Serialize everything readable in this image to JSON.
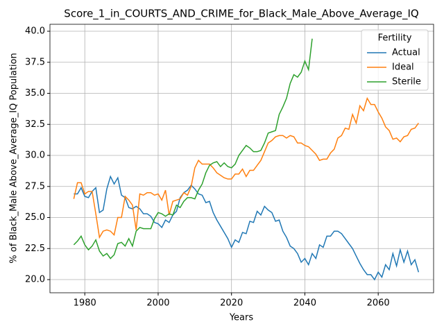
{
  "chart_data": {
    "type": "line",
    "title": "Score_1_in_COURTS_AND_CRIME_for_Black_Male_Above_Average_IQ",
    "xlabel": "Years",
    "ylabel": "% of Black_Male Above_Average_IQ Population",
    "x": [
      1977,
      1978,
      1979,
      1980,
      1981,
      1982,
      1983,
      1984,
      1985,
      1986,
      1987,
      1988,
      1989,
      1990,
      1991,
      1992,
      1993,
      1994,
      1995,
      1996,
      1997,
      1998,
      1999,
      2000,
      2001,
      2002,
      2003,
      2004,
      2005,
      2006,
      2007,
      2008,
      2009,
      2010,
      2011,
      2012,
      2013,
      2014,
      2015,
      2016,
      2017,
      2018,
      2019,
      2020,
      2021,
      2022,
      2023,
      2024,
      2025,
      2026,
      2027,
      2028,
      2029,
      2030,
      2031,
      2032,
      2033,
      2034,
      2035,
      2036,
      2037,
      2038,
      2039,
      2040,
      2041,
      2042,
      2043,
      2044,
      2045,
      2046,
      2047,
      2048,
      2049,
      2050,
      2051,
      2052,
      2053,
      2054,
      2055,
      2056,
      2057,
      2058,
      2059,
      2060,
      2061,
      2062,
      2063,
      2064,
      2065,
      2066,
      2067,
      2068,
      2069,
      2070,
      2071
    ],
    "series": [
      {
        "name": "Actual",
        "color": "#1f77b4",
        "values": [
          26.9,
          26.9,
          27.4,
          26.7,
          26.6,
          27.1,
          27.4,
          25.4,
          25.6,
          27.3,
          28.3,
          27.7,
          28.2,
          26.8,
          26.6,
          25.8,
          25.7,
          25.9,
          25.7,
          25.3,
          25.3,
          25.1,
          24.6,
          24.5,
          24.2,
          24.8,
          24.6,
          25.2,
          25.5,
          26.6,
          27.0,
          27.2,
          27.6,
          27.3,
          26.9,
          26.8,
          26.2,
          26.3,
          25.4,
          24.8,
          24.3,
          23.8,
          23.3,
          22.6,
          23.2,
          23.0,
          23.8,
          23.7,
          24.7,
          24.6,
          25.5,
          25.2,
          25.9,
          25.6,
          25.4,
          24.7,
          24.8,
          23.9,
          23.4,
          22.7,
          22.5,
          22.1,
          21.4,
          21.7,
          21.2,
          22.1,
          21.7,
          22.8,
          22.6,
          23.5,
          23.5,
          23.9,
          23.9,
          23.7,
          23.3,
          22.9,
          22.5,
          21.9,
          21.3,
          20.8,
          20.4,
          20.4,
          20.0,
          20.6,
          20.2,
          21.2,
          20.8,
          22.1,
          21.1,
          22.4,
          21.4,
          22.3,
          21.2,
          21.6,
          20.6
        ]
      },
      {
        "name": "Ideal",
        "color": "#ff7f0e",
        "values": [
          26.5,
          27.8,
          27.8,
          26.9,
          27.1,
          27.1,
          25.3,
          23.4,
          23.9,
          24.0,
          23.9,
          23.6,
          25.0,
          25.0,
          26.7,
          26.4,
          26.0,
          24.0,
          26.9,
          26.8,
          27.0,
          27.0,
          26.8,
          26.9,
          26.4,
          27.2,
          25.2,
          26.3,
          26.4,
          26.5,
          27.0,
          26.8,
          27.5,
          29.0,
          29.6,
          29.3,
          29.3,
          29.3,
          29.0,
          28.6,
          28.4,
          28.2,
          28.1,
          28.1,
          28.5,
          28.5,
          28.9,
          28.3,
          28.8,
          28.8,
          29.2,
          29.6,
          30.3,
          31.0,
          31.2,
          31.5,
          31.6,
          31.6,
          31.4,
          31.6,
          31.5,
          31.0,
          31.0,
          30.8,
          30.7,
          30.4,
          30.1,
          29.6,
          29.7,
          29.7,
          30.2,
          30.5,
          31.4,
          31.6,
          32.2,
          32.1,
          33.3,
          32.6,
          34.0,
          33.6,
          34.6,
          34.1,
          34.1,
          33.5,
          33.0,
          32.3,
          32.0,
          31.3,
          31.4,
          31.1,
          31.5,
          31.6,
          32.1,
          32.2,
          32.6
        ]
      },
      {
        "name": "Sterile",
        "color": "#2ca02c",
        "values": [
          22.8,
          23.1,
          23.5,
          22.8,
          22.4,
          22.7,
          23.2,
          22.3,
          21.9,
          22.1,
          21.7,
          22.0,
          22.9,
          23.0,
          22.7,
          23.3,
          22.7,
          23.9,
          24.2,
          24.1,
          24.1,
          24.1,
          24.9,
          25.4,
          25.3,
          25.1,
          25.3,
          25.2,
          26.0,
          25.8,
          26.3,
          26.6,
          26.6,
          26.5,
          27.2,
          27.7,
          28.6,
          29.2,
          29.4,
          29.5,
          29.1,
          29.4,
          29.1,
          29.0,
          29.3,
          30.0,
          30.4,
          30.8,
          30.6,
          30.3,
          30.3,
          30.4,
          31.0,
          31.8,
          31.9,
          32.0,
          33.3,
          33.9,
          34.6,
          35.8,
          36.5,
          36.3,
          36.7,
          37.6,
          36.9,
          39.4,
          null,
          null,
          null,
          null,
          null,
          null,
          null,
          null,
          null,
          null,
          null,
          null,
          null,
          null,
          null,
          null,
          null,
          null,
          null,
          null,
          null,
          null,
          null,
          null,
          null,
          null,
          null,
          null,
          null
        ]
      }
    ],
    "xlim": [
      1970.5,
      2075.1
    ],
    "xticks": [
      1980,
      2000,
      2020,
      2040,
      2060
    ],
    "ylim": [
      18.94,
      40.56
    ],
    "yticks": [
      {
        "value": 20,
        "label": "20.0"
      },
      {
        "value": 22.5,
        "label": "22.5"
      },
      {
        "value": 25,
        "label": "25.0"
      },
      {
        "value": 27.5,
        "label": "27.5"
      },
      {
        "value": 30,
        "label": "30.0"
      },
      {
        "value": 32.5,
        "label": "32.5"
      },
      {
        "value": 35,
        "label": "35.0"
      },
      {
        "value": 37.5,
        "label": "37.5"
      },
      {
        "value": 40,
        "label": "40.0"
      }
    ],
    "grid": true,
    "legend": {
      "title": "Fertility",
      "loc": "upper right"
    }
  }
}
